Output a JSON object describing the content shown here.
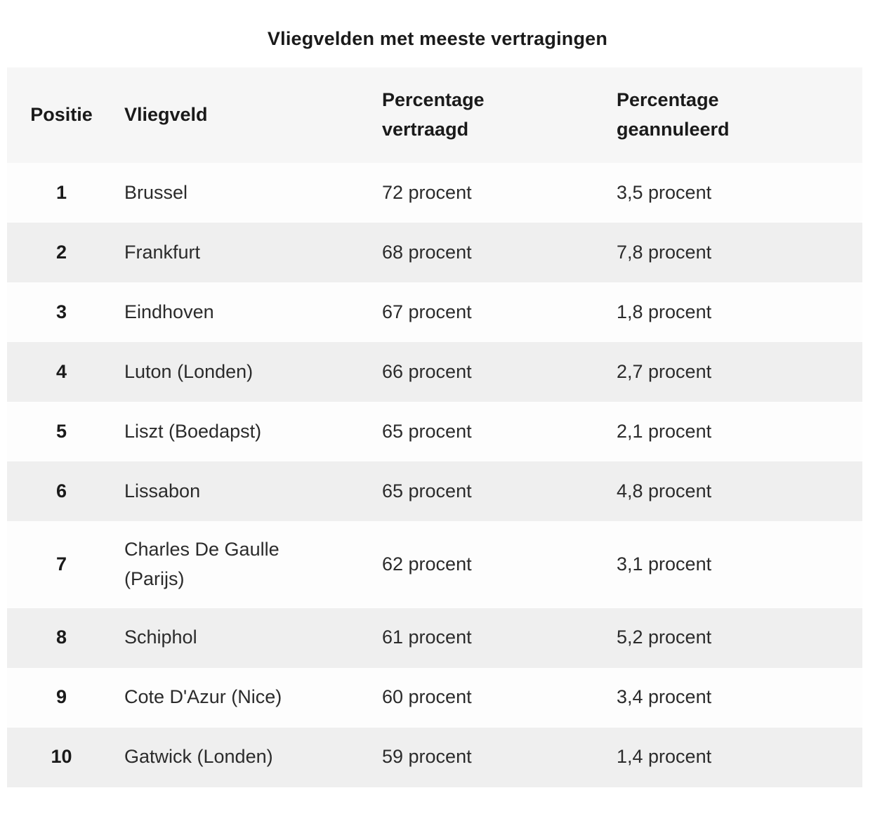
{
  "title": "Vliegvelden met meeste vertragingen",
  "colors": {
    "header_bg": "#f6f6f6",
    "row_odd_bg": "#fdfdfd",
    "row_even_bg": "#efefef",
    "text_dark": "#1a1a1a",
    "text_body": "#2b2b2b",
    "page_bg": "#ffffff"
  },
  "chart_data": {
    "type": "table",
    "title": "Vliegvelden met meeste vertragingen",
    "columns": [
      "Positie",
      "Vliegveld",
      "Percentage vertraagd",
      "Percentage geannuleerd"
    ],
    "rows": [
      [
        "1",
        "Brussel",
        "72 procent",
        "3,5 procent"
      ],
      [
        "2",
        "Frankfurt",
        "68 procent",
        "7,8 procent"
      ],
      [
        "3",
        "Eindhoven",
        "67 procent",
        "1,8 procent"
      ],
      [
        "4",
        "Luton (Londen)",
        "66 procent",
        "2,7 procent"
      ],
      [
        "5",
        "Liszt (Boedapst)",
        "65 procent",
        "2,1 procent"
      ],
      [
        "6",
        "Lissabon",
        "65 procent",
        "4,8 procent"
      ],
      [
        "7",
        "Charles De Gaulle (Parijs)",
        "62 procent",
        "3,1 procent"
      ],
      [
        "8",
        "Schiphol",
        "61 procent",
        "5,2 procent"
      ],
      [
        "9",
        "Cote D'Azur (Nice)",
        "60 procent",
        "3,4 procent"
      ],
      [
        "10",
        "Gatwick (Londen)",
        "59 procent",
        "1,4 procent"
      ]
    ],
    "values": {
      "percentage_vertraagd": [
        72,
        68,
        67,
        66,
        65,
        65,
        62,
        61,
        60,
        59
      ],
      "percentage_geannuleerd": [
        3.5,
        7.8,
        1.8,
        2.7,
        2.1,
        4.8,
        3.1,
        5.2,
        3.4,
        1.4
      ]
    },
    "layout": {
      "header_position": "top",
      "striped": true,
      "grid": false,
      "first_column_align": "center",
      "other_columns_align": "left"
    }
  }
}
